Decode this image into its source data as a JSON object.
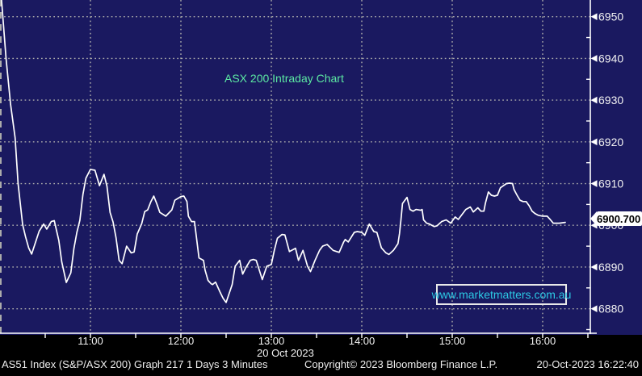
{
  "colors": {
    "background": "#1a1960",
    "footer_background": "#000000",
    "line": "#ffffff",
    "grid": "#ababab",
    "axis": "#ffffff",
    "title_green": "#5ce9a3",
    "watermark_cyan": "#2cc9e4",
    "label_text": "#f2f2f2",
    "price_tag_bg": "#ffffff",
    "price_tag_text": "#000000"
  },
  "title": "ASX 200 Intraday Chart",
  "watermark": "www.marketmatters.com.au",
  "price_tag": "6900.700",
  "date_label": "20 Oct 2023",
  "footer": {
    "left": "AS51 Index (S&P/ASX 200) Graph 217 1 Days 3 Minutes",
    "center": "Copyright© 2023 Bloomberg Finance L.P.",
    "right": "20-Oct-2023 16:22:40"
  },
  "chart_data": {
    "type": "line",
    "title": "ASX 200 Intraday Chart",
    "instrument": "AS51 Index (S&P/ASX 200)",
    "interval": "3 Minutes",
    "session_date": "20 Oct 2023",
    "last_price": 6900.7,
    "grid": true,
    "x_axis": {
      "unit": "minutes since 10:00",
      "range": [
        0,
        391.6
      ],
      "tick_minutes": [
        60,
        120,
        180,
        240,
        300,
        360
      ],
      "tick_labels": [
        "11:00",
        "12:00",
        "13:00",
        "14:00",
        "15:00",
        "16:00"
      ],
      "minor_tick_minutes": [
        30,
        60,
        90,
        120,
        150,
        180,
        210,
        240,
        270,
        300,
        330,
        360,
        390
      ]
    },
    "y_axis": {
      "side": "right",
      "range": [
        6874.2,
        6954.0
      ],
      "ticks": [
        6880,
        6890,
        6900,
        6910,
        6920,
        6930,
        6940,
        6950
      ],
      "minor_ticks": [
        6875,
        6885,
        6895,
        6905,
        6915,
        6925,
        6935,
        6945
      ]
    },
    "series": [
      {
        "name": "ASX 200 intraday price",
        "points": [
          [
            1,
            6954
          ],
          [
            4,
            6940
          ],
          [
            7,
            6929
          ],
          [
            10,
            6921
          ],
          [
            12,
            6910
          ],
          [
            15,
            6900.2
          ],
          [
            17,
            6897.2
          ],
          [
            19,
            6894.6
          ],
          [
            21,
            6893.1
          ],
          [
            26,
            6898.6
          ],
          [
            29,
            6900.3
          ],
          [
            31,
            6899.1
          ],
          [
            34,
            6900.9
          ],
          [
            36,
            6901.1
          ],
          [
            39,
            6896.4
          ],
          [
            41,
            6891.2
          ],
          [
            44,
            6886.3
          ],
          [
            47,
            6888.6
          ],
          [
            49,
            6894.4
          ],
          [
            51,
            6898.3
          ],
          [
            53,
            6901.2
          ],
          [
            55,
            6907.4
          ],
          [
            57,
            6911.3
          ],
          [
            60,
            6913.4
          ],
          [
            63,
            6913.2
          ],
          [
            66,
            6909.5
          ],
          [
            69,
            6912.2
          ],
          [
            71,
            6909.3
          ],
          [
            73,
            6903.1
          ],
          [
            75,
            6900.8
          ],
          [
            77,
            6897.0
          ],
          [
            79,
            6891.6
          ],
          [
            81,
            6890.8
          ],
          [
            84,
            6895.0
          ],
          [
            87,
            6893.4
          ],
          [
            89,
            6893.6
          ],
          [
            91,
            6897.9
          ],
          [
            94,
            6900.4
          ],
          [
            96,
            6903.3
          ],
          [
            98,
            6903.7
          ],
          [
            100,
            6905.6
          ],
          [
            102,
            6907.0
          ],
          [
            104,
            6905.2
          ],
          [
            106,
            6903.1
          ],
          [
            110,
            6902.2
          ],
          [
            114,
            6903.7
          ],
          [
            116,
            6906.0
          ],
          [
            120,
            6906.9
          ],
          [
            122,
            6907.0
          ],
          [
            124,
            6905.7
          ],
          [
            125,
            6902.2
          ],
          [
            127,
            6900.9
          ],
          [
            129,
            6900.9
          ],
          [
            130,
            6898.0
          ],
          [
            132,
            6892.2
          ],
          [
            135,
            6891.6
          ],
          [
            136,
            6889.3
          ],
          [
            138,
            6886.8
          ],
          [
            140,
            6886.0
          ],
          [
            141,
            6885.8
          ],
          [
            143,
            6886.4
          ],
          [
            146,
            6884.0
          ],
          [
            148,
            6882.5
          ],
          [
            150,
            6881.5
          ],
          [
            154,
            6885.8
          ],
          [
            156,
            6890.2
          ],
          [
            159,
            6891.6
          ],
          [
            161,
            6888.3
          ],
          [
            163,
            6889.8
          ],
          [
            166,
            6891.6
          ],
          [
            168,
            6891.8
          ],
          [
            170,
            6891.6
          ],
          [
            174,
            6887.0
          ],
          [
            177,
            6890.2
          ],
          [
            180,
            6890.6
          ],
          [
            182,
            6894.0
          ],
          [
            184,
            6896.9
          ],
          [
            187,
            6897.8
          ],
          [
            189,
            6897.7
          ],
          [
            192,
            6893.7
          ],
          [
            196,
            6894.5
          ],
          [
            198,
            6891.6
          ],
          [
            201,
            6894.0
          ],
          [
            204,
            6890.2
          ],
          [
            206,
            6888.9
          ],
          [
            209,
            6891.6
          ],
          [
            212,
            6894.0
          ],
          [
            214,
            6895.0
          ],
          [
            217,
            6895.4
          ],
          [
            221,
            6894.0
          ],
          [
            225,
            6893.5
          ],
          [
            228,
            6896.0
          ],
          [
            229,
            6896.6
          ],
          [
            231,
            6896.0
          ],
          [
            235,
            6898.3
          ],
          [
            237,
            6898.5
          ],
          [
            240,
            6898.3
          ],
          [
            242,
            6897.6
          ],
          [
            245,
            6900.3
          ],
          [
            248,
            6898.5
          ],
          [
            250,
            6898.3
          ],
          [
            253,
            6894.6
          ],
          [
            256,
            6893.4
          ],
          [
            258,
            6893.0
          ],
          [
            261,
            6894.0
          ],
          [
            264,
            6895.6
          ],
          [
            265,
            6898.0
          ],
          [
            266,
            6901.3
          ],
          [
            267,
            6905.2
          ],
          [
            270,
            6906.7
          ],
          [
            272,
            6903.8
          ],
          [
            274,
            6903.4
          ],
          [
            276,
            6903.8
          ],
          [
            279,
            6903.6
          ],
          [
            280,
            6903.8
          ],
          [
            281,
            6901.3
          ],
          [
            283,
            6900.5
          ],
          [
            285,
            6900.3
          ],
          [
            288,
            6899.7
          ],
          [
            290,
            6899.9
          ],
          [
            293,
            6900.9
          ],
          [
            296,
            6901.3
          ],
          [
            299,
            6900.5
          ],
          [
            302,
            6902.0
          ],
          [
            304,
            6901.4
          ],
          [
            309,
            6903.8
          ],
          [
            312,
            6904.4
          ],
          [
            314,
            6903.2
          ],
          [
            317,
            6904.2
          ],
          [
            319,
            6903.4
          ],
          [
            321,
            6903.4
          ],
          [
            322,
            6905.3
          ],
          [
            324,
            6908.0
          ],
          [
            326,
            6907.2
          ],
          [
            328,
            6907.0
          ],
          [
            330,
            6907.2
          ],
          [
            332,
            6909.0
          ],
          [
            334,
            6909.5
          ],
          [
            336,
            6910.0
          ],
          [
            338,
            6910.1
          ],
          [
            340,
            6910.0
          ],
          [
            341,
            6908.6
          ],
          [
            343,
            6907.2
          ],
          [
            345,
            6906.0
          ],
          [
            347,
            6905.7
          ],
          [
            349,
            6905.7
          ],
          [
            351,
            6904.7
          ],
          [
            353,
            6903.4
          ],
          [
            355,
            6902.8
          ],
          [
            357,
            6902.4
          ],
          [
            360,
            6902.2
          ],
          [
            363,
            6902.2
          ],
          [
            365,
            6901.4
          ],
          [
            367,
            6900.5
          ],
          [
            371,
            6900.5
          ],
          [
            375,
            6900.7
          ]
        ]
      }
    ]
  }
}
